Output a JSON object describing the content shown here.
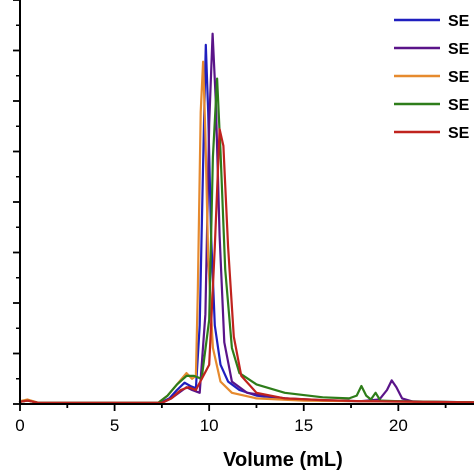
{
  "chart_data": {
    "type": "line",
    "title": "",
    "xlabel": "Volume (mL)",
    "ylabel": "",
    "xlim": [
      0,
      24
    ],
    "ylim": [
      0,
      7.2
    ],
    "xticks": [
      0,
      5,
      10,
      15,
      20
    ],
    "xtick_labels": [
      "0",
      "5",
      "10",
      "15",
      "20"
    ],
    "ytick_count": 8,
    "grid": false,
    "legend_placement": "top-right",
    "series": [
      {
        "name": "SE",
        "color": "#1f1fbf",
        "points": [
          [
            0,
            0.04
          ],
          [
            0.4,
            0.07
          ],
          [
            1,
            0.02
          ],
          [
            7.4,
            0.02
          ],
          [
            7.9,
            0.1
          ],
          [
            8.3,
            0.25
          ],
          [
            8.7,
            0.38
          ],
          [
            9.0,
            0.32
          ],
          [
            9.3,
            0.28
          ],
          [
            9.5,
            1.4
          ],
          [
            9.7,
            4.6
          ],
          [
            9.82,
            6.4
          ],
          [
            9.95,
            5.2
          ],
          [
            10.1,
            3.0
          ],
          [
            10.3,
            1.4
          ],
          [
            10.6,
            0.7
          ],
          [
            11,
            0.4
          ],
          [
            11.6,
            0.25
          ],
          [
            12.5,
            0.15
          ],
          [
            14,
            0.1
          ],
          [
            16,
            0.06
          ],
          [
            18,
            0.05
          ],
          [
            20,
            0.05
          ],
          [
            24,
            0.03
          ]
        ]
      },
      {
        "name": "SE",
        "color": "#5a1489",
        "points": [
          [
            0,
            0.04
          ],
          [
            0.4,
            0.06
          ],
          [
            1,
            0.02
          ],
          [
            7.5,
            0.02
          ],
          [
            8.0,
            0.1
          ],
          [
            8.4,
            0.2
          ],
          [
            8.8,
            0.3
          ],
          [
            9.1,
            0.25
          ],
          [
            9.5,
            0.2
          ],
          [
            9.8,
            1.6
          ],
          [
            10.0,
            5.0
          ],
          [
            10.18,
            6.6
          ],
          [
            10.35,
            5.4
          ],
          [
            10.55,
            3.0
          ],
          [
            10.8,
            1.1
          ],
          [
            11.2,
            0.4
          ],
          [
            12,
            0.2
          ],
          [
            14,
            0.1
          ],
          [
            16,
            0.07
          ],
          [
            18,
            0.05
          ],
          [
            19.0,
            0.08
          ],
          [
            19.4,
            0.25
          ],
          [
            19.65,
            0.42
          ],
          [
            19.9,
            0.3
          ],
          [
            20.2,
            0.1
          ],
          [
            20.8,
            0.04
          ],
          [
            24,
            0.03
          ]
        ]
      },
      {
        "name": "SE",
        "color": "#e68a2e",
        "points": [
          [
            0,
            0.05
          ],
          [
            0.4,
            0.08
          ],
          [
            1,
            0.02
          ],
          [
            7.3,
            0.02
          ],
          [
            7.8,
            0.15
          ],
          [
            8.3,
            0.35
          ],
          [
            8.8,
            0.55
          ],
          [
            9.1,
            0.45
          ],
          [
            9.3,
            0.5
          ],
          [
            9.4,
            2.0
          ],
          [
            9.55,
            5.2
          ],
          [
            9.68,
            6.1
          ],
          [
            9.8,
            4.8
          ],
          [
            9.95,
            2.6
          ],
          [
            10.2,
            1.0
          ],
          [
            10.6,
            0.4
          ],
          [
            11.2,
            0.2
          ],
          [
            12.5,
            0.1
          ],
          [
            15,
            0.06
          ],
          [
            18,
            0.05
          ],
          [
            24,
            0.03
          ]
        ]
      },
      {
        "name": "SE",
        "color": "#2e7d1a",
        "points": [
          [
            0,
            0.04
          ],
          [
            0.4,
            0.06
          ],
          [
            1,
            0.02
          ],
          [
            7.3,
            0.02
          ],
          [
            7.8,
            0.15
          ],
          [
            8.3,
            0.35
          ],
          [
            8.8,
            0.5
          ],
          [
            9.2,
            0.5
          ],
          [
            9.6,
            0.45
          ],
          [
            10.0,
            1.5
          ],
          [
            10.2,
            4.4
          ],
          [
            10.42,
            5.8
          ],
          [
            10.6,
            4.5
          ],
          [
            10.85,
            2.4
          ],
          [
            11.2,
            1.0
          ],
          [
            11.6,
            0.55
          ],
          [
            12.5,
            0.35
          ],
          [
            14,
            0.2
          ],
          [
            16,
            0.12
          ],
          [
            17.4,
            0.1
          ],
          [
            17.8,
            0.15
          ],
          [
            18.05,
            0.32
          ],
          [
            18.3,
            0.15
          ],
          [
            18.55,
            0.08
          ],
          [
            18.8,
            0.2
          ],
          [
            19.05,
            0.06
          ],
          [
            20,
            0.05
          ],
          [
            24,
            0.03
          ]
        ]
      },
      {
        "name": "SE",
        "color": "#c0231e",
        "points": [
          [
            0,
            0.04
          ],
          [
            0.4,
            0.06
          ],
          [
            1,
            0.02
          ],
          [
            7.5,
            0.02
          ],
          [
            8.0,
            0.1
          ],
          [
            8.5,
            0.25
          ],
          [
            8.9,
            0.3
          ],
          [
            9.3,
            0.25
          ],
          [
            10.0,
            0.7
          ],
          [
            10.3,
            2.8
          ],
          [
            10.55,
            4.9
          ],
          [
            10.75,
            4.6
          ],
          [
            11.0,
            2.8
          ],
          [
            11.3,
            1.2
          ],
          [
            11.7,
            0.5
          ],
          [
            12.5,
            0.2
          ],
          [
            14,
            0.1
          ],
          [
            16,
            0.07
          ],
          [
            18,
            0.05
          ],
          [
            24,
            0.03
          ]
        ]
      }
    ]
  }
}
